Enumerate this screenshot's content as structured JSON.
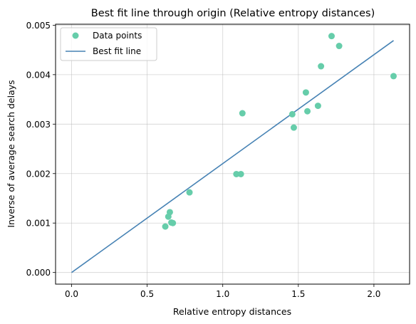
{
  "chart_data": {
    "type": "scatter",
    "title": "Best fit line through origin (Relative entropy distances)",
    "xlabel": "Relative entropy distances",
    "ylabel": "Inverse of average search delays",
    "xlim": [
      -0.106,
      2.236
    ],
    "ylim": [
      -0.000235,
      0.00502
    ],
    "x_ticks": [
      0.0,
      0.5,
      1.0,
      1.5,
      2.0
    ],
    "x_tick_labels": [
      "0.0",
      "0.5",
      "1.0",
      "1.5",
      "2.0"
    ],
    "y_ticks": [
      0.0,
      0.001,
      0.002,
      0.003,
      0.004,
      0.005
    ],
    "y_tick_labels": [
      "0.000",
      "0.001",
      "0.002",
      "0.003",
      "0.004",
      "0.005"
    ],
    "grid": true,
    "legend_position": "top-left",
    "series": [
      {
        "name": "Data points",
        "kind": "scatter",
        "color": "#66cdaa",
        "points": [
          [
            0.62,
            0.00093
          ],
          [
            0.64,
            0.00113
          ],
          [
            0.65,
            0.00122
          ],
          [
            0.66,
            0.00101
          ],
          [
            0.67,
            0.001
          ],
          [
            0.78,
            0.00162
          ],
          [
            1.09,
            0.00199
          ],
          [
            1.12,
            0.00199
          ],
          [
            1.13,
            0.00322
          ],
          [
            1.46,
            0.0032
          ],
          [
            1.47,
            0.00293
          ],
          [
            1.55,
            0.00364
          ],
          [
            1.56,
            0.00326
          ],
          [
            1.63,
            0.00337
          ],
          [
            1.65,
            0.00417
          ],
          [
            1.72,
            0.00478
          ],
          [
            1.77,
            0.00458
          ],
          [
            2.13,
            0.00397
          ]
        ]
      },
      {
        "name": "Best fit line",
        "kind": "line",
        "color": "#4682b4",
        "points": [
          [
            0.0,
            0.0
          ],
          [
            2.13,
            0.00469
          ]
        ]
      }
    ]
  }
}
